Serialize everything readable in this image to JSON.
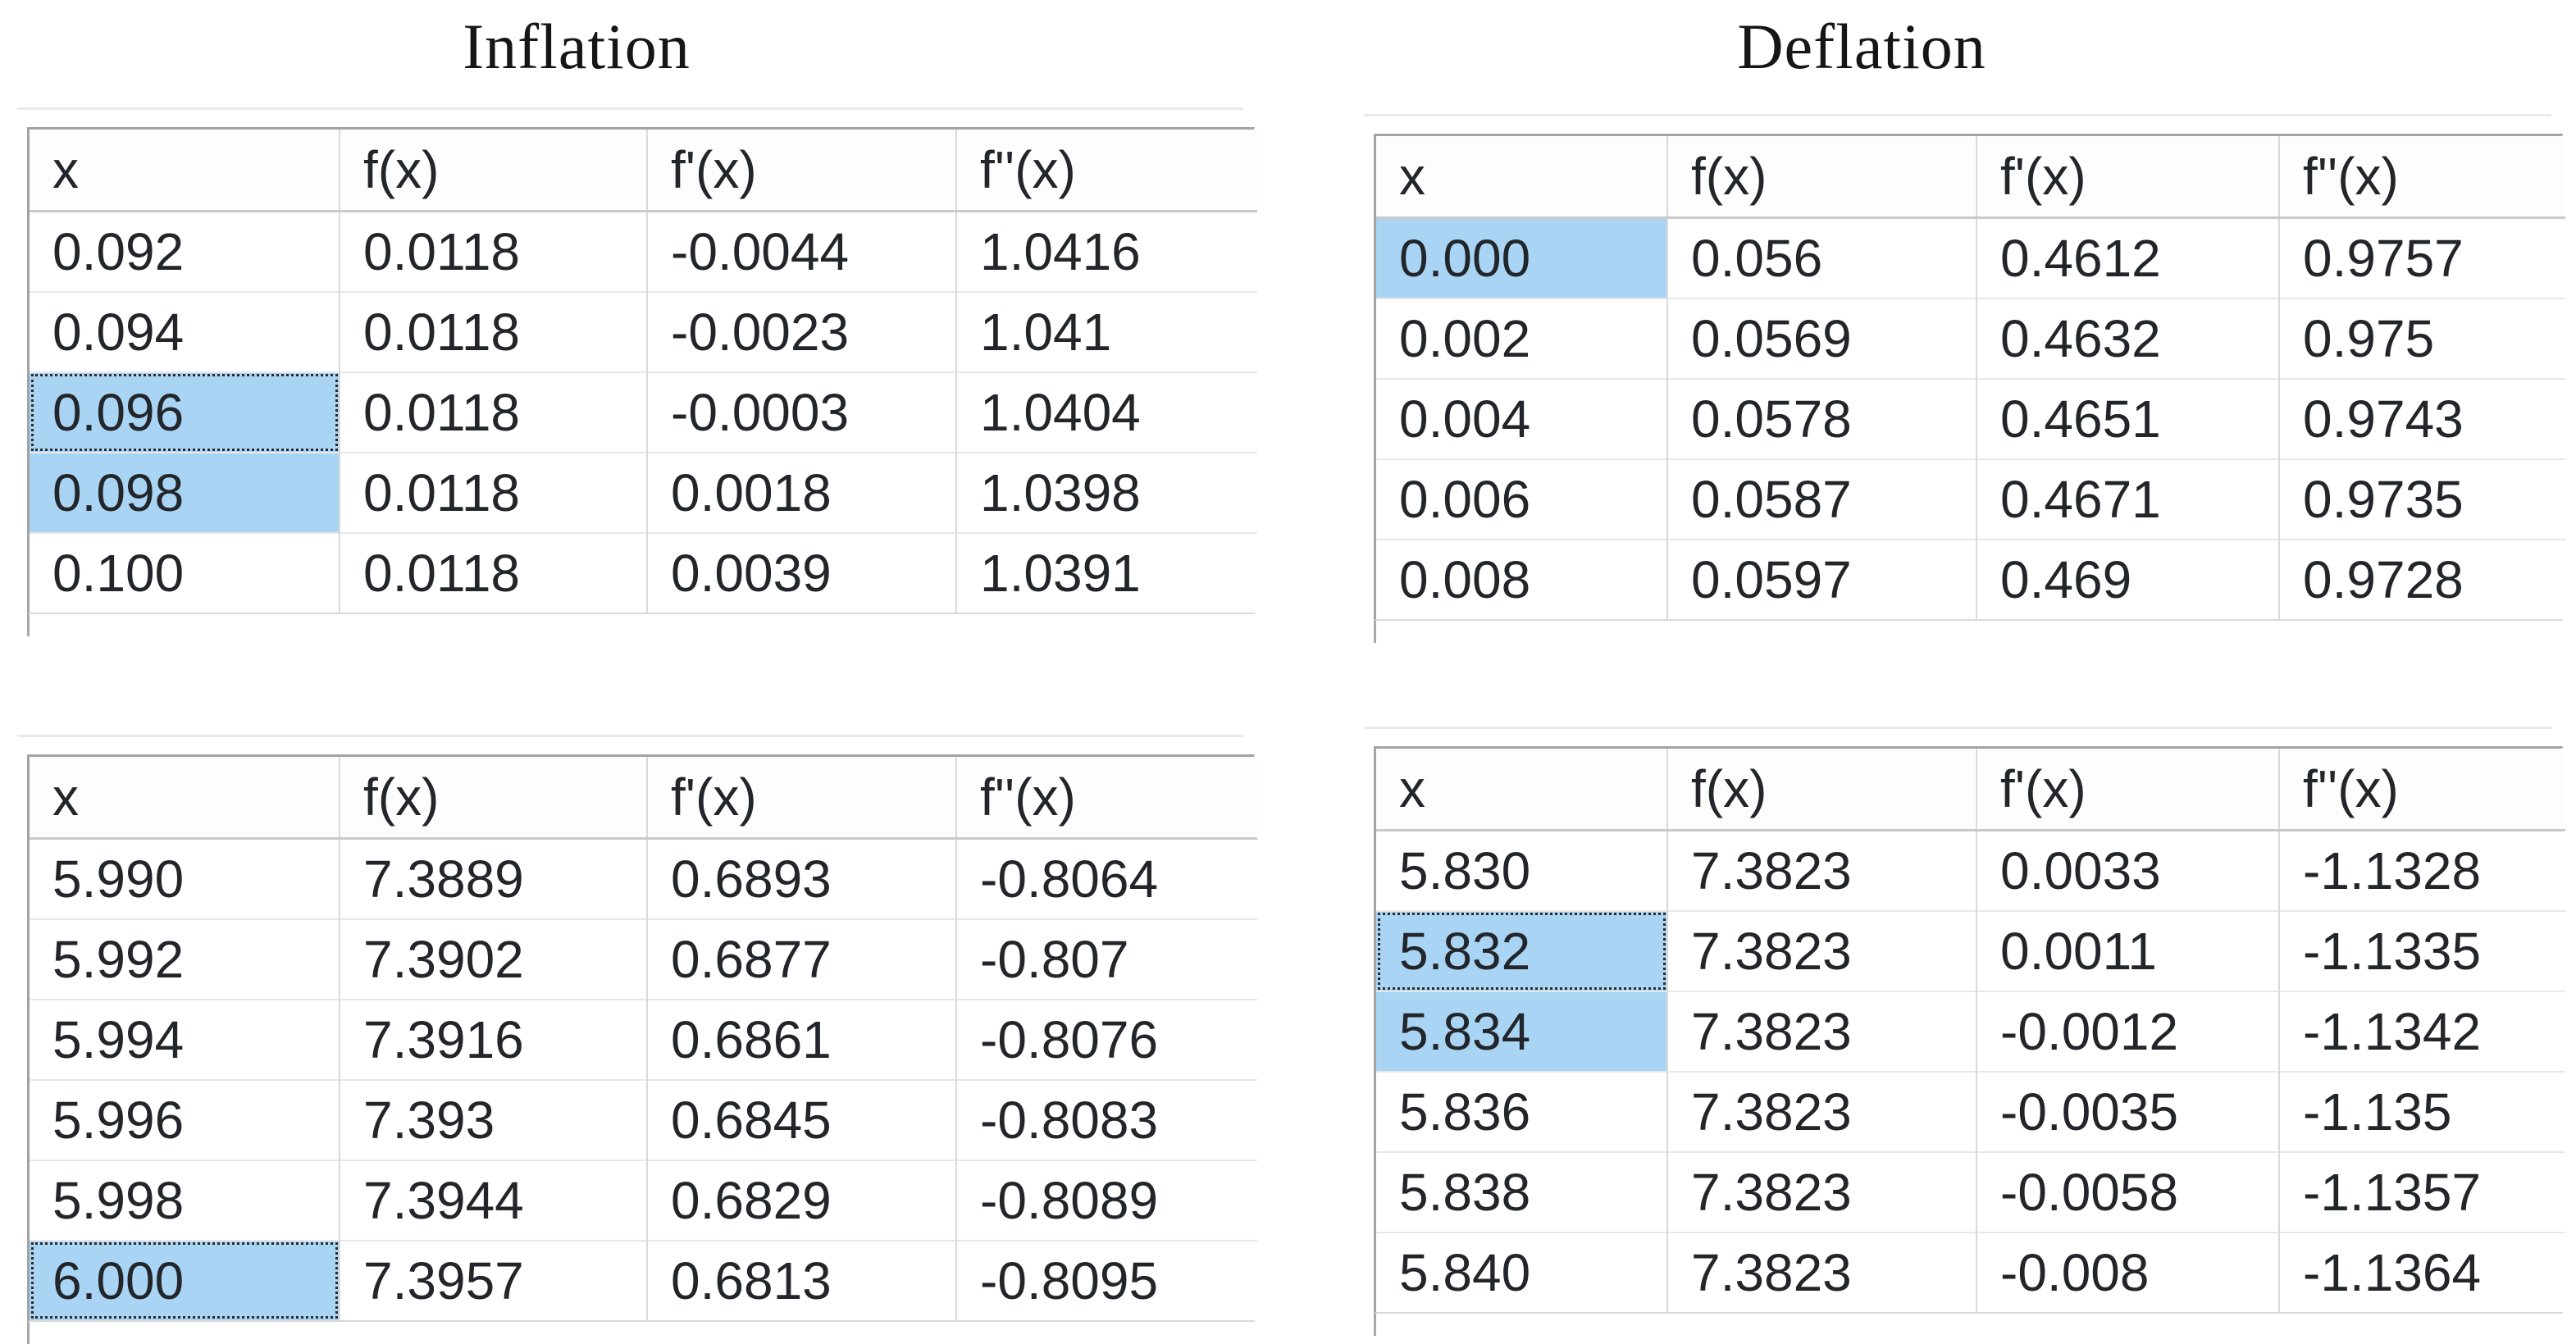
{
  "page": {
    "background": "#ffffff"
  },
  "colors": {
    "selection_fill": "#a9d4f4",
    "focus_outline": "#2b2b2b",
    "grid_outer_border": "#a3a3a3",
    "column_divider": "#d9d9d9",
    "row_divider": "#e7e7e9",
    "header_divider": "#c9c9c9",
    "text": "#22262a"
  },
  "titles": {
    "left": "Inflation",
    "right": "Deflation"
  },
  "tables": [
    {
      "id": "inflation-start-table",
      "group": "Inflation",
      "headers": [
        "x",
        "f(x)",
        "f'(x)",
        "f''(x)"
      ],
      "rows": [
        [
          "0.092",
          "0.0118",
          "-0.0044",
          "1.0416"
        ],
        [
          "0.094",
          "0.0118",
          "-0.0023",
          "1.041"
        ],
        [
          "0.096",
          "0.0118",
          "-0.0003",
          "1.0404"
        ],
        [
          "0.098",
          "0.0118",
          "0.0018",
          "1.0398"
        ],
        [
          "0.100",
          "0.0118",
          "0.0039",
          "1.0391"
        ]
      ],
      "selected_cells": [
        {
          "row": 2,
          "col": 0,
          "focused": true
        },
        {
          "row": 3,
          "col": 0,
          "focused": false
        }
      ]
    },
    {
      "id": "deflation-start-table",
      "group": "Deflation",
      "headers": [
        "x",
        "f(x)",
        "f'(x)",
        "f''(x)"
      ],
      "rows": [
        [
          "0.000",
          "0.056",
          "0.4612",
          "0.9757"
        ],
        [
          "0.002",
          "0.0569",
          "0.4632",
          "0.975"
        ],
        [
          "0.004",
          "0.0578",
          "0.4651",
          "0.9743"
        ],
        [
          "0.006",
          "0.0587",
          "0.4671",
          "0.9735"
        ],
        [
          "0.008",
          "0.0597",
          "0.469",
          "0.9728"
        ]
      ],
      "selected_cells": [
        {
          "row": 0,
          "col": 0,
          "focused": false
        }
      ]
    },
    {
      "id": "inflation-end-table",
      "group": "Inflation",
      "headers": [
        "x",
        "f(x)",
        "f'(x)",
        "f''(x)"
      ],
      "rows": [
        [
          "5.990",
          "7.3889",
          "0.6893",
          "-0.8064"
        ],
        [
          "5.992",
          "7.3902",
          "0.6877",
          "-0.807"
        ],
        [
          "5.994",
          "7.3916",
          "0.6861",
          "-0.8076"
        ],
        [
          "5.996",
          "7.393",
          "0.6845",
          "-0.8083"
        ],
        [
          "5.998",
          "7.3944",
          "0.6829",
          "-0.8089"
        ],
        [
          "6.000",
          "7.3957",
          "0.6813",
          "-0.8095"
        ]
      ],
      "selected_cells": [
        {
          "row": 5,
          "col": 0,
          "focused": true
        }
      ]
    },
    {
      "id": "deflation-end-table",
      "group": "Deflation",
      "headers": [
        "x",
        "f(x)",
        "f'(x)",
        "f''(x)"
      ],
      "rows": [
        [
          "5.830",
          "7.3823",
          "0.0033",
          "-1.1328"
        ],
        [
          "5.832",
          "7.3823",
          "0.0011",
          "-1.1335"
        ],
        [
          "5.834",
          "7.3823",
          "-0.0012",
          "-1.1342"
        ],
        [
          "5.836",
          "7.3823",
          "-0.0035",
          "-1.135"
        ],
        [
          "5.838",
          "7.3823",
          "-0.0058",
          "-1.1357"
        ],
        [
          "5.840",
          "7.3823",
          "-0.008",
          "-1.1364"
        ]
      ],
      "selected_cells": [
        {
          "row": 1,
          "col": 0,
          "focused": true
        },
        {
          "row": 2,
          "col": 0,
          "focused": false
        }
      ]
    }
  ]
}
